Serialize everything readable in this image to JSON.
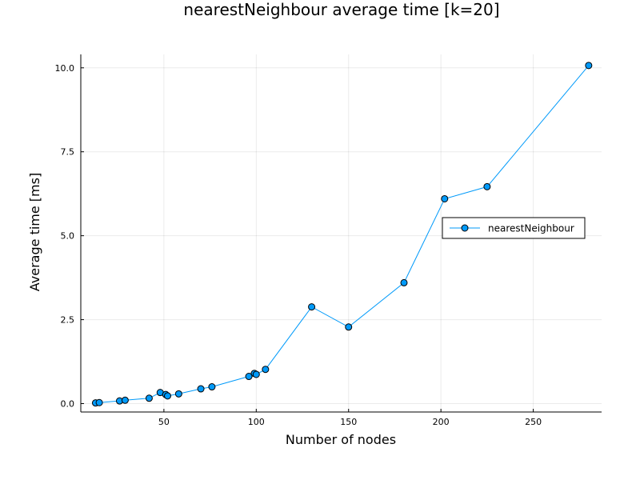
{
  "chart_data": {
    "type": "line",
    "title": "nearestNeighbour average time [k=20]",
    "xlabel": "Number of nodes",
    "ylabel": "Average time [ms]",
    "xlim": [
      5,
      287
    ],
    "ylim": [
      -0.25,
      10.4
    ],
    "xticks": [
      50,
      100,
      150,
      200,
      250
    ],
    "yticks": [
      0.0,
      2.5,
      5.0,
      7.5,
      10.0
    ],
    "ytick_labels": [
      "0.0",
      "2.5",
      "5.0",
      "7.5",
      "10.0"
    ],
    "grid": true,
    "legend_position": "right",
    "series": [
      {
        "name": "nearestNeighbour",
        "color": "#009AFA",
        "marker": "circle",
        "x": [
          13,
          15,
          26,
          29,
          42,
          48,
          51,
          52,
          58,
          70,
          76,
          96,
          99,
          100,
          105,
          130,
          150,
          180,
          202,
          225,
          280
        ],
        "y": [
          0.02,
          0.03,
          0.08,
          0.1,
          0.16,
          0.33,
          0.27,
          0.23,
          0.29,
          0.44,
          0.5,
          0.81,
          0.9,
          0.87,
          1.02,
          2.88,
          2.28,
          3.6,
          6.1,
          6.46,
          10.07
        ]
      }
    ]
  }
}
